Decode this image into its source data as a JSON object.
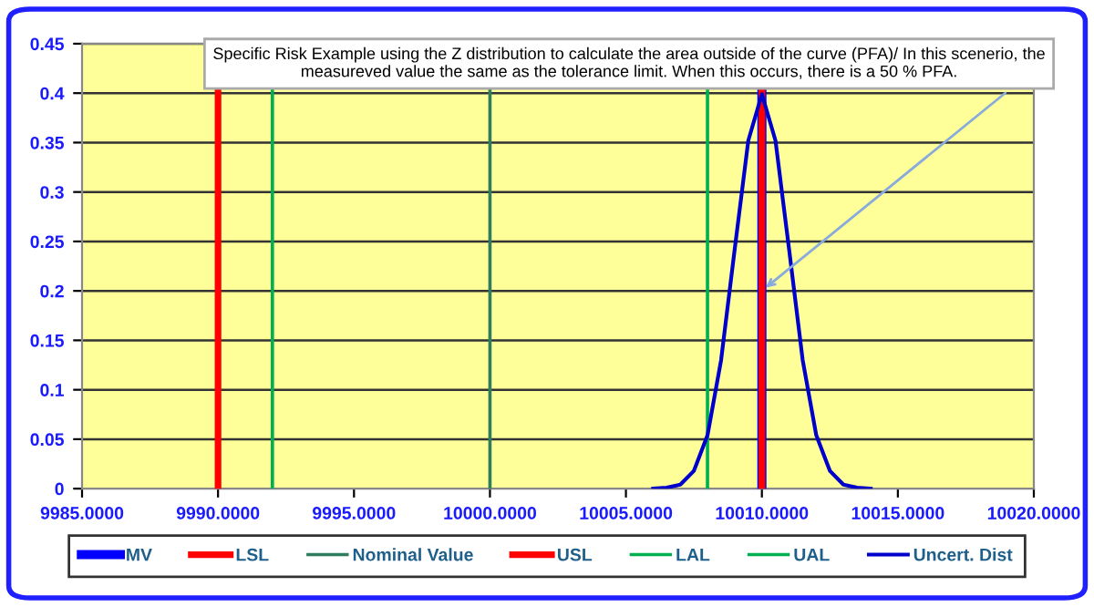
{
  "chart_data": {
    "type": "line",
    "xlim": [
      9985,
      10020
    ],
    "xticks": [
      {
        "value": 9985,
        "label": "9985.0000"
      },
      {
        "value": 9990,
        "label": "9990.0000"
      },
      {
        "value": 9995,
        "label": "9995.0000"
      },
      {
        "value": 10000,
        "label": "10000.0000"
      },
      {
        "value": 10005,
        "label": "10005.0000"
      },
      {
        "value": 10010,
        "label": "10010.0000"
      },
      {
        "value": 10015,
        "label": "10015.0000"
      },
      {
        "value": 10020,
        "label": "10020.0000"
      }
    ],
    "ylim": [
      0,
      0.45
    ],
    "yticks": [
      0,
      0.05,
      0.1,
      0.15,
      0.2,
      0.25,
      0.3,
      0.35,
      0.4,
      0.45
    ],
    "grid": "y",
    "legend": "bottom",
    "ref_lines": [
      {
        "axis": "x",
        "value": 10010,
        "label": "MV",
        "color": "#0000ff"
      },
      {
        "axis": "x",
        "value": 9990,
        "label": "LSL",
        "color": "#ff0000"
      },
      {
        "axis": "x",
        "value": 10000,
        "label": "Nominal Value",
        "color": "#2e7d5e"
      },
      {
        "axis": "x",
        "value": 10010,
        "label": "USL",
        "color": "#ff0000"
      },
      {
        "axis": "x",
        "value": 9992,
        "label": "LAL",
        "color": "#00b050"
      },
      {
        "axis": "x",
        "value": 10008,
        "label": "UAL",
        "color": "#00b050"
      }
    ],
    "series": [
      {
        "name": "Uncert. Dist",
        "color": "#0000cc",
        "x": [
          10006,
          10006.5,
          10007,
          10007.5,
          10008,
          10008.5,
          10009,
          10009.5,
          10010,
          10010.5,
          10011,
          10011.5,
          10012,
          10012.5,
          10013,
          10013.5,
          10014
        ],
        "values": [
          0.0,
          0.001,
          0.004,
          0.018,
          0.054,
          0.13,
          0.242,
          0.352,
          0.399,
          0.352,
          0.242,
          0.13,
          0.054,
          0.018,
          0.004,
          0.001,
          0.0
        ]
      }
    ],
    "annotations": [
      {
        "text": "Specific Risk Example using the Z distribution to calculate the area outside of the curve (PFA)/ In this scenerio, the measureved value the same as the tolerance limit. When this occurs, there is a 50 % PFA.",
        "x": 10010,
        "y": 0.2
      }
    ]
  }
}
